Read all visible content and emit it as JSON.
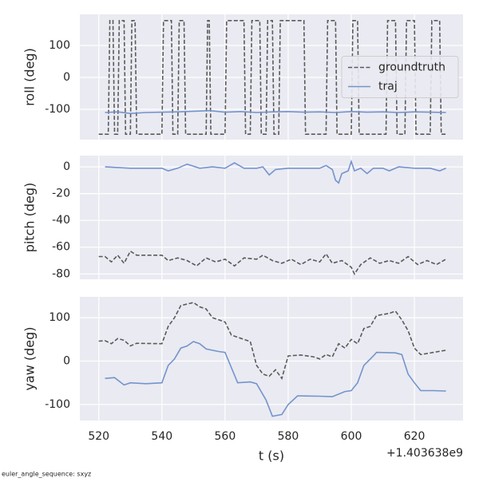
{
  "chart_data": [
    {
      "type": "line",
      "ylabel": "roll (deg)",
      "xlim": [
        514,
        635.4
      ],
      "ylim": [
        -195,
        197.5
      ],
      "xticks": [
        520,
        540,
        560,
        580,
        600,
        620
      ],
      "yticks": [
        -100,
        0,
        100
      ],
      "grid": true,
      "legend": "right",
      "series": [
        {
          "name": "groundtruth",
          "color": "#5a5a5a",
          "linestyle": "dashed",
          "x": [
            520,
            523,
            523.5,
            524.5,
            525,
            526,
            526.5,
            528,
            528.5,
            530,
            530.5,
            531.5,
            532,
            540,
            540.5,
            543,
            543.5,
            545,
            545.5,
            547,
            547.5,
            554,
            554.5,
            555,
            555.5,
            560,
            560.5,
            566,
            566.5,
            568,
            568.5,
            571,
            571.5,
            573,
            573.5,
            575,
            575.5,
            577,
            577.5,
            585,
            585.5,
            592,
            592.5,
            595,
            595.5,
            600,
            600.5,
            602,
            602.5,
            611,
            611.5,
            614,
            614.5,
            617,
            617.5,
            620,
            620.5,
            625,
            625.5,
            628,
            628.5,
            630
          ],
          "values": [
            -178,
            -178,
            178,
            178,
            -178,
            -178,
            178,
            178,
            -178,
            -178,
            178,
            178,
            -178,
            -178,
            178,
            178,
            -178,
            -178,
            178,
            178,
            -178,
            -178,
            178,
            178,
            -178,
            -178,
            178,
            178,
            -178,
            -178,
            178,
            178,
            -178,
            -178,
            178,
            178,
            -178,
            -178,
            178,
            178,
            -178,
            -178,
            178,
            178,
            -178,
            -178,
            178,
            178,
            -178,
            -178,
            178,
            178,
            -178,
            -178,
            178,
            178,
            -178,
            -178,
            178,
            178,
            -178,
            -178
          ]
        },
        {
          "name": "traj",
          "color": "#7394cc",
          "linestyle": "solid",
          "x": [
            522,
            526,
            530,
            535,
            540,
            545,
            550,
            555,
            560,
            565,
            570,
            575,
            580,
            585,
            590,
            595,
            600,
            605,
            610,
            615,
            620,
            625,
            630
          ],
          "values": [
            -110,
            -108,
            -113,
            -110,
            -109,
            -108,
            -106,
            -104,
            -109,
            -107,
            -110,
            -108,
            -107,
            -109,
            -108,
            -110,
            -107,
            -109,
            -108,
            -110,
            -108,
            -109,
            -110
          ]
        }
      ]
    },
    {
      "type": "line",
      "ylabel": "pitch (deg)",
      "xlim": [
        514,
        635.4
      ],
      "ylim": [
        -84,
        8.4
      ],
      "xticks": [
        520,
        540,
        560,
        580,
        600,
        620
      ],
      "yticks": [
        -80,
        -60,
        -40,
        -20,
        0
      ],
      "grid": true,
      "series": [
        {
          "name": "groundtruth",
          "color": "#5a5a5a",
          "linestyle": "dashed",
          "x": [
            520,
            522,
            524,
            526,
            528,
            530,
            532,
            540,
            542,
            545,
            548,
            551,
            554,
            557,
            560,
            563,
            566,
            570,
            572,
            575,
            578,
            581,
            584,
            587,
            590,
            592,
            594,
            597,
            600,
            601,
            603,
            606,
            609,
            612,
            615,
            618,
            621,
            624,
            627,
            630
          ],
          "values": [
            -67,
            -67,
            -71,
            -66,
            -72,
            -63,
            -66,
            -66,
            -70,
            -68,
            -70,
            -74,
            -68,
            -71,
            -69,
            -74,
            -68,
            -69,
            -66,
            -70,
            -72,
            -69,
            -73,
            -69,
            -71,
            -65,
            -72,
            -70,
            -75,
            -80,
            -73,
            -68,
            -72,
            -70,
            -72,
            -67,
            -73,
            -70,
            -73,
            -69
          ]
        },
        {
          "name": "traj",
          "color": "#7394cc",
          "linestyle": "solid",
          "x": [
            522,
            530,
            540,
            542,
            545,
            548,
            552,
            556,
            560,
            563,
            566,
            570,
            572,
            574,
            576,
            580,
            590,
            592,
            594,
            595,
            596,
            597,
            599,
            600,
            601,
            603,
            605,
            607,
            610,
            612,
            615,
            620,
            625,
            628,
            630
          ],
          "values": [
            0,
            -1,
            -1,
            -3,
            -1,
            2,
            -1,
            0,
            -1,
            3,
            -1,
            -1,
            0,
            -6,
            -2,
            -1,
            -1,
            1,
            -2,
            -10,
            -12,
            -5,
            -3,
            4,
            -3,
            -1,
            -5,
            -1,
            -1,
            -3,
            0,
            -1,
            -1,
            -3,
            -1
          ]
        }
      ]
    },
    {
      "type": "line",
      "ylabel": "yaw (deg)",
      "xlabel": "t (s)",
      "x_offset": "+1.403638e9",
      "xlim": [
        514,
        635.4
      ],
      "ylim": [
        -137,
        148
      ],
      "xticks": [
        520,
        540,
        560,
        580,
        600,
        620
      ],
      "yticks": [
        -100,
        0,
        100
      ],
      "grid": true,
      "series": [
        {
          "name": "groundtruth",
          "color": "#5a5a5a",
          "linestyle": "dashed",
          "x": [
            520,
            522,
            524,
            526,
            528,
            530,
            532,
            540,
            542,
            544,
            546,
            550,
            552,
            554,
            556,
            560,
            562,
            566,
            568,
            570,
            572,
            574,
            576,
            578,
            580,
            584,
            588,
            590,
            592,
            594,
            596,
            598,
            600,
            602,
            604,
            606,
            608,
            612,
            614,
            616,
            618,
            620,
            622,
            626,
            630
          ],
          "values": [
            46,
            47,
            40,
            52,
            48,
            35,
            41,
            40,
            80,
            100,
            128,
            135,
            125,
            120,
            100,
            90,
            60,
            50,
            45,
            -10,
            -30,
            -35,
            -20,
            -40,
            12,
            14,
            10,
            5,
            15,
            10,
            40,
            30,
            50,
            40,
            75,
            80,
            105,
            110,
            115,
            95,
            70,
            30,
            15,
            20,
            25
          ]
        },
        {
          "name": "traj",
          "color": "#7394cc",
          "linestyle": "solid",
          "x": [
            522,
            525,
            528,
            530,
            535,
            540,
            542,
            544,
            546,
            548,
            550,
            552,
            554,
            558,
            560,
            564,
            568,
            570,
            573,
            575,
            578,
            580,
            583,
            590,
            594,
            598,
            600,
            602,
            604,
            607,
            608,
            614,
            616,
            618,
            620,
            622,
            626,
            630
          ],
          "values": [
            -40,
            -38,
            -55,
            -50,
            -52,
            -50,
            -10,
            5,
            30,
            35,
            45,
            40,
            28,
            22,
            20,
            -50,
            -48,
            -52,
            -90,
            -127,
            -123,
            -100,
            -80,
            -81,
            -82,
            -70,
            -68,
            -50,
            -10,
            12,
            20,
            19,
            15,
            -30,
            -50,
            -68,
            -68,
            -69
          ]
        }
      ]
    }
  ],
  "footer": "euler_angle_sequence: sxyz"
}
